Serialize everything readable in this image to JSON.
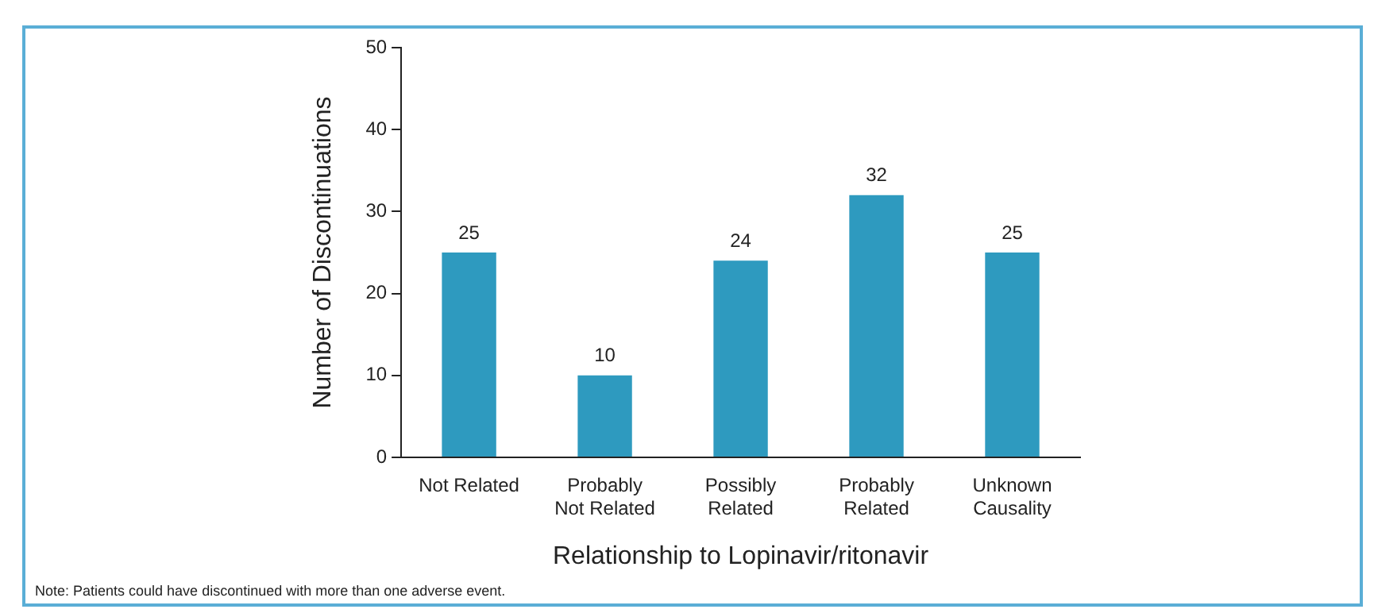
{
  "chart_data": {
    "type": "bar",
    "xlabel": "Relationship to Lopinavir/ritonavir",
    "ylabel": "Number of Discontinuations",
    "categories": [
      "Not Related",
      "Probably\nNot Related",
      "Possibly\nRelated",
      "Probably\nRelated",
      "Unknown\nCausality"
    ],
    "values": [
      25,
      10,
      24,
      32,
      25
    ],
    "color": "#2e9abf",
    "ylim": [
      0,
      50
    ],
    "yticks": [
      0,
      10,
      20,
      30,
      40,
      50
    ],
    "grid": false,
    "legend": false,
    "data_labels": true,
    "annotations": [
      "Note: Patients could have discontinued with more than one adverse event."
    ]
  }
}
